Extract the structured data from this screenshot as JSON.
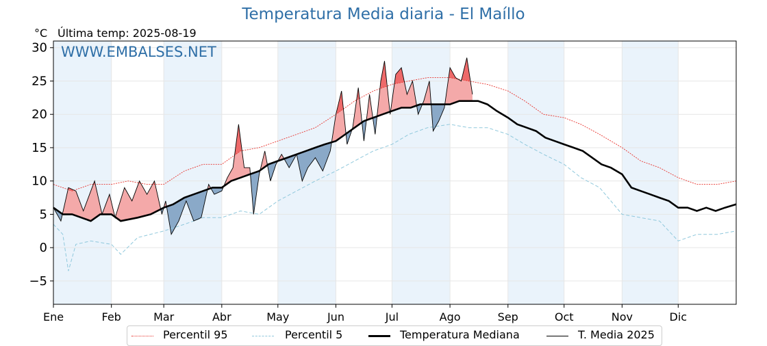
{
  "chart_data": {
    "type": "line",
    "title": "Temperatura Media diaria - El Maíllo",
    "ylabel": "°C",
    "subtitle": "Última temp: 2025-08-19",
    "watermark": "WWW.EMBALSES.NET",
    "ylim": [
      -8.5,
      31
    ],
    "yticks": [
      -5,
      0,
      5,
      10,
      15,
      20,
      25,
      30
    ],
    "ytick_labels": [
      "−5",
      "0",
      "5",
      "10",
      "15",
      "20",
      "25",
      "30"
    ],
    "x_range_days": [
      0,
      365
    ],
    "months": [
      "Ene",
      "Feb",
      "Mar",
      "Abr",
      "May",
      "Jun",
      "Jul",
      "Ago",
      "Sep",
      "Oct",
      "Nov",
      "Dic"
    ],
    "month_start_days": [
      0,
      31,
      59,
      90,
      120,
      151,
      181,
      212,
      243,
      273,
      304,
      334
    ],
    "grid": true,
    "legend_position": "bottom",
    "series": [
      {
        "name": "Percentil 95",
        "style": "dotted",
        "color": "#e8322c",
        "points": [
          [
            0,
            9.5
          ],
          [
            10,
            8.5
          ],
          [
            20,
            9.5
          ],
          [
            31,
            9.5
          ],
          [
            40,
            10
          ],
          [
            50,
            9.5
          ],
          [
            59,
            9.5
          ],
          [
            70,
            11.5
          ],
          [
            80,
            12.5
          ],
          [
            90,
            12.5
          ],
          [
            100,
            14.5
          ],
          [
            110,
            15
          ],
          [
            120,
            16
          ],
          [
            130,
            17
          ],
          [
            140,
            18
          ],
          [
            151,
            20
          ],
          [
            161,
            22
          ],
          [
            171,
            23.5
          ],
          [
            181,
            24.5
          ],
          [
            190,
            25
          ],
          [
            200,
            25.5
          ],
          [
            212,
            25.5
          ],
          [
            222,
            25
          ],
          [
            232,
            24.5
          ],
          [
            243,
            23.5
          ],
          [
            252,
            22
          ],
          [
            262,
            20
          ],
          [
            273,
            19.5
          ],
          [
            282,
            18.5
          ],
          [
            292,
            17
          ],
          [
            304,
            15
          ],
          [
            314,
            13
          ],
          [
            324,
            12
          ],
          [
            334,
            10.5
          ],
          [
            344,
            9.5
          ],
          [
            355,
            9.5
          ],
          [
            365,
            10
          ]
        ]
      },
      {
        "name": "Percentil 5",
        "style": "dashed",
        "color": "#8fc8dc",
        "points": [
          [
            0,
            3.5
          ],
          [
            5,
            2
          ],
          [
            8,
            -3.5
          ],
          [
            12,
            0.5
          ],
          [
            20,
            1
          ],
          [
            31,
            0.5
          ],
          [
            36,
            -1
          ],
          [
            45,
            1.5
          ],
          [
            59,
            2.5
          ],
          [
            70,
            3.5
          ],
          [
            80,
            4.5
          ],
          [
            90,
            4.5
          ],
          [
            100,
            5.5
          ],
          [
            110,
            5
          ],
          [
            120,
            7
          ],
          [
            130,
            8.5
          ],
          [
            140,
            10
          ],
          [
            151,
            11.5
          ],
          [
            161,
            13
          ],
          [
            171,
            14.5
          ],
          [
            181,
            15.5
          ],
          [
            190,
            17
          ],
          [
            200,
            18
          ],
          [
            212,
            18.5
          ],
          [
            222,
            18
          ],
          [
            232,
            18
          ],
          [
            243,
            17
          ],
          [
            252,
            15.5
          ],
          [
            262,
            14
          ],
          [
            273,
            12.5
          ],
          [
            282,
            10.5
          ],
          [
            292,
            9
          ],
          [
            304,
            5
          ],
          [
            314,
            4.5
          ],
          [
            324,
            4
          ],
          [
            334,
            1
          ],
          [
            344,
            2
          ],
          [
            355,
            2
          ],
          [
            365,
            2.5
          ]
        ]
      },
      {
        "name": "Temperatura Mediana",
        "style": "solid-thick",
        "color": "#000000",
        "points": [
          [
            0,
            6
          ],
          [
            5,
            5
          ],
          [
            10,
            5
          ],
          [
            15,
            4.5
          ],
          [
            20,
            4
          ],
          [
            25,
            5
          ],
          [
            31,
            5
          ],
          [
            36,
            4
          ],
          [
            45,
            4.5
          ],
          [
            52,
            5
          ],
          [
            59,
            6
          ],
          [
            64,
            6.5
          ],
          [
            70,
            7.5
          ],
          [
            75,
            8
          ],
          [
            80,
            8.5
          ],
          [
            85,
            9
          ],
          [
            90,
            9
          ],
          [
            95,
            10
          ],
          [
            100,
            10.5
          ],
          [
            105,
            11
          ],
          [
            110,
            11.5
          ],
          [
            115,
            12.5
          ],
          [
            120,
            13
          ],
          [
            125,
            13.5
          ],
          [
            130,
            14
          ],
          [
            135,
            14.5
          ],
          [
            140,
            15
          ],
          [
            145,
            15.5
          ],
          [
            151,
            16
          ],
          [
            156,
            17
          ],
          [
            161,
            18
          ],
          [
            166,
            19
          ],
          [
            171,
            19.5
          ],
          [
            176,
            20
          ],
          [
            181,
            20.5
          ],
          [
            186,
            21
          ],
          [
            191,
            21
          ],
          [
            196,
            21.5
          ],
          [
            201,
            21.5
          ],
          [
            206,
            21.5
          ],
          [
            212,
            21.5
          ],
          [
            217,
            22
          ],
          [
            222,
            22
          ],
          [
            227,
            22
          ],
          [
            232,
            21.5
          ],
          [
            237,
            20.5
          ],
          [
            243,
            19.5
          ],
          [
            248,
            18.5
          ],
          [
            253,
            18
          ],
          [
            258,
            17.5
          ],
          [
            263,
            16.5
          ],
          [
            268,
            16
          ],
          [
            273,
            15.5
          ],
          [
            278,
            15
          ],
          [
            283,
            14.5
          ],
          [
            288,
            13.5
          ],
          [
            293,
            12.5
          ],
          [
            298,
            12
          ],
          [
            304,
            11
          ],
          [
            309,
            9
          ],
          [
            314,
            8.5
          ],
          [
            319,
            8
          ],
          [
            324,
            7.5
          ],
          [
            329,
            7
          ],
          [
            334,
            6
          ],
          [
            339,
            6
          ],
          [
            344,
            5.5
          ],
          [
            349,
            6
          ],
          [
            354,
            5.5
          ],
          [
            359,
            6
          ],
          [
            365,
            6.5
          ]
        ]
      },
      {
        "name": "T. Media 2025",
        "style": "solid-thin",
        "color": "#000000",
        "points": [
          [
            0,
            6
          ],
          [
            4,
            4
          ],
          [
            8,
            9
          ],
          [
            12,
            8.5
          ],
          [
            16,
            5.5
          ],
          [
            22,
            10
          ],
          [
            26,
            5
          ],
          [
            30,
            8
          ],
          [
            33,
            4.5
          ],
          [
            38,
            9
          ],
          [
            42,
            7
          ],
          [
            46,
            10
          ],
          [
            50,
            8
          ],
          [
            54,
            10
          ],
          [
            58,
            5
          ],
          [
            60,
            7
          ],
          [
            63,
            2
          ],
          [
            67,
            4
          ],
          [
            71,
            7
          ],
          [
            75,
            4
          ],
          [
            79,
            4.5
          ],
          [
            83,
            9.5
          ],
          [
            86,
            8
          ],
          [
            90,
            8.5
          ],
          [
            93,
            10.5
          ],
          [
            96,
            12
          ],
          [
            99,
            18.5
          ],
          [
            102,
            12
          ],
          [
            105,
            12
          ],
          [
            107,
            5
          ],
          [
            110,
            11
          ],
          [
            113,
            14.5
          ],
          [
            116,
            10
          ],
          [
            119,
            12.5
          ],
          [
            122,
            14
          ],
          [
            126,
            12
          ],
          [
            130,
            14
          ],
          [
            133,
            10
          ],
          [
            136,
            12
          ],
          [
            140,
            13.5
          ],
          [
            144,
            11.5
          ],
          [
            148,
            14.5
          ],
          [
            151,
            20
          ],
          [
            154,
            23.5
          ],
          [
            157,
            15.5
          ],
          [
            160,
            18
          ],
          [
            163,
            24
          ],
          [
            166,
            16
          ],
          [
            169,
            23
          ],
          [
            172,
            17
          ],
          [
            175,
            25
          ],
          [
            177,
            28
          ],
          [
            180,
            20
          ],
          [
            183,
            26
          ],
          [
            186,
            27
          ],
          [
            189,
            23
          ],
          [
            192,
            25
          ],
          [
            195,
            20
          ],
          [
            198,
            22
          ],
          [
            201,
            25
          ],
          [
            203,
            17.5
          ],
          [
            206,
            19
          ],
          [
            209,
            21
          ],
          [
            212,
            27
          ],
          [
            215,
            25.5
          ],
          [
            218,
            25
          ],
          [
            221,
            28.5
          ],
          [
            224,
            23
          ]
        ]
      }
    ]
  },
  "legend": {
    "items": [
      {
        "label": "Percentil 95"
      },
      {
        "label": "Percentil 5"
      },
      {
        "label": "Temperatura Mediana"
      },
      {
        "label": "T. Media 2025"
      }
    ]
  },
  "colors": {
    "above_fill": "#f4a9a9",
    "above_strong_fill": "#ee6a6a",
    "below_fill": "#8aa9c8",
    "band_fill": "#eaf3fb",
    "title": "#2f6fa7"
  }
}
